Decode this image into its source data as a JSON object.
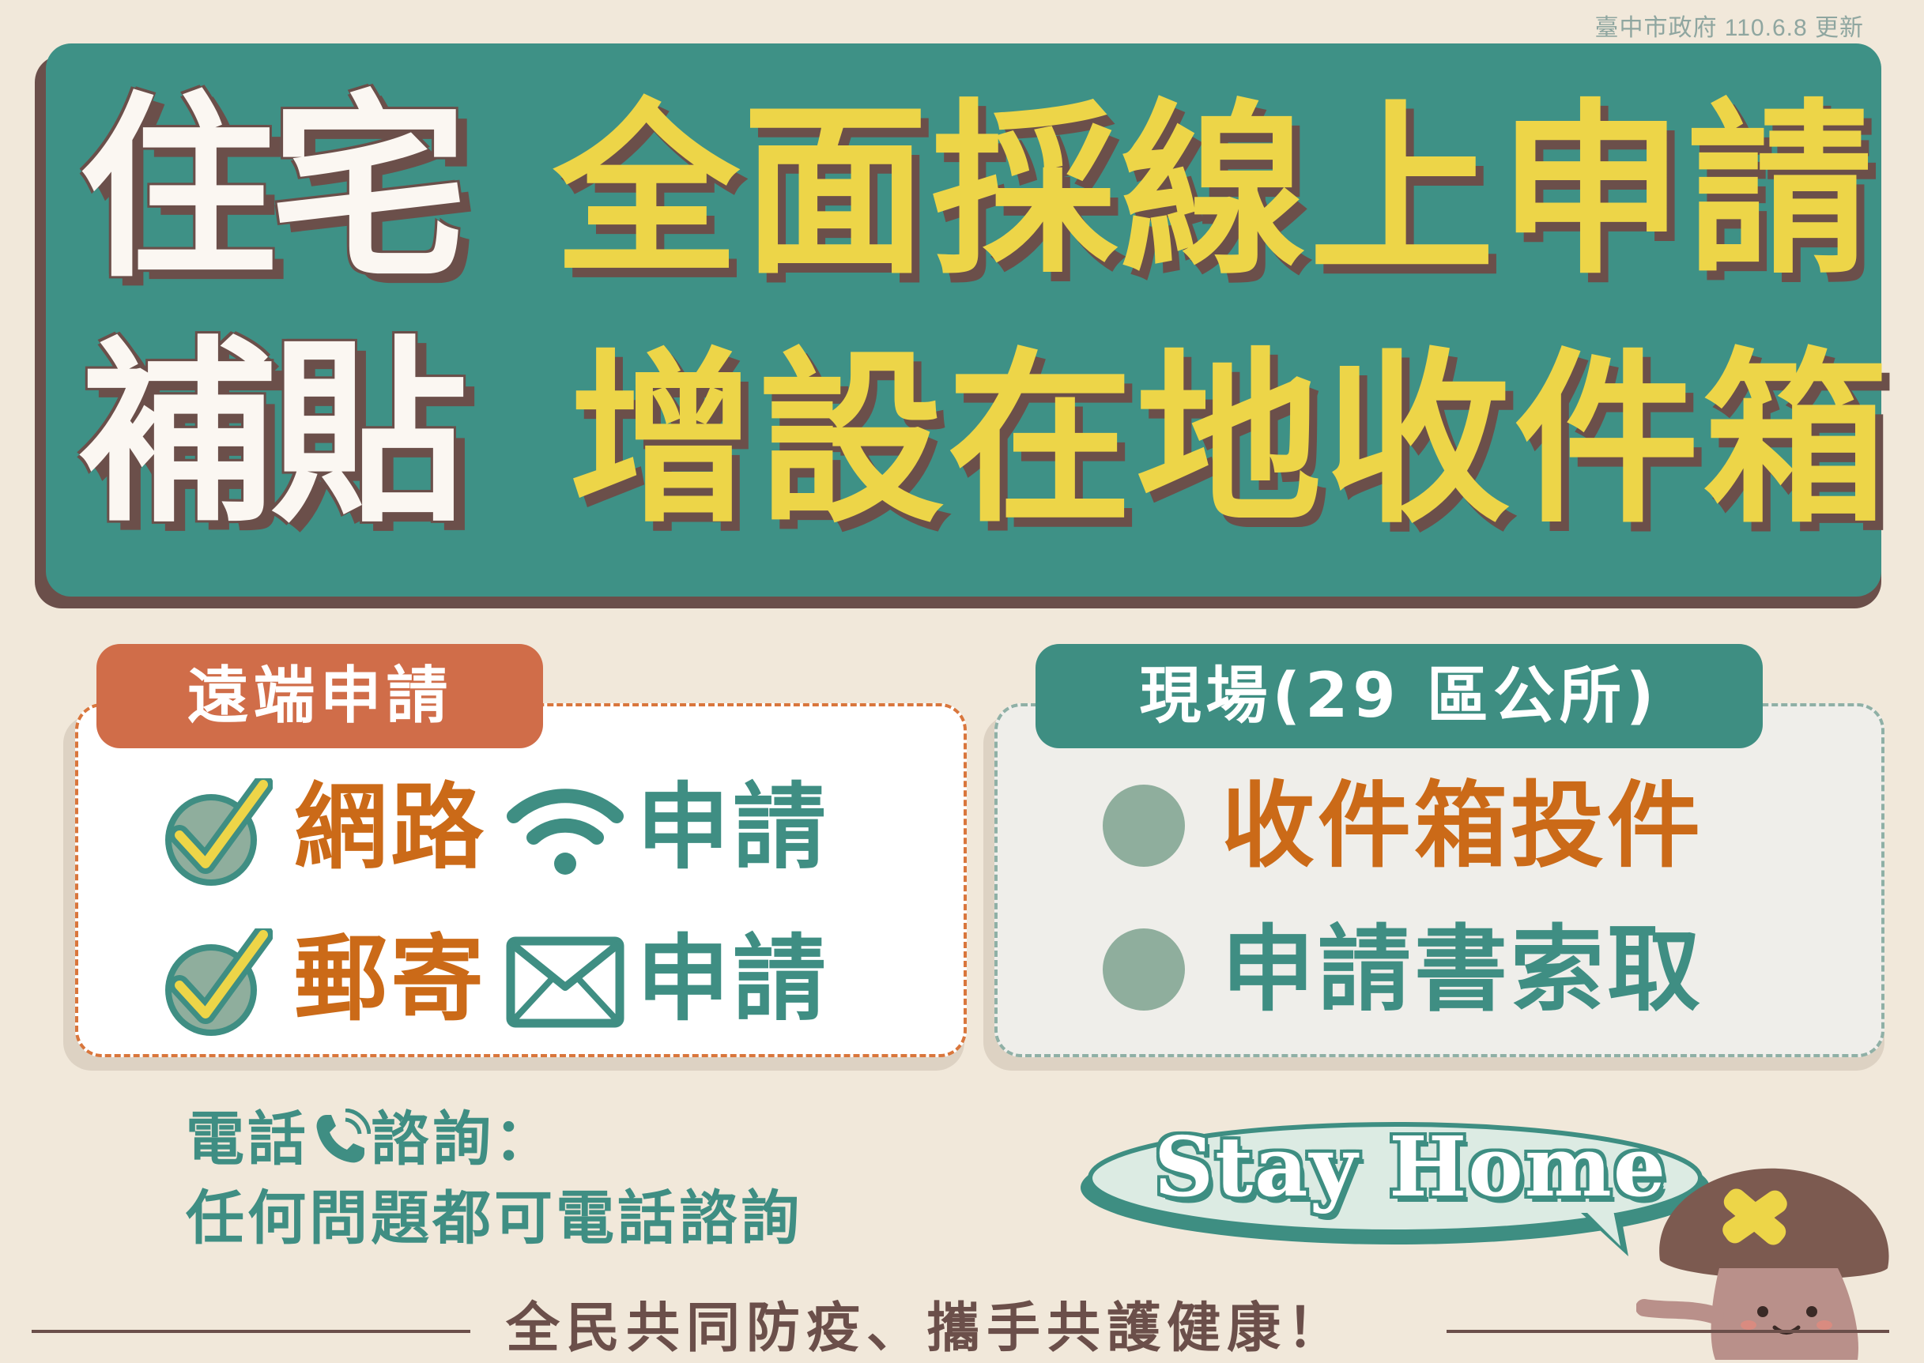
{
  "update_note": "臺中市政府 110.6.8 更新",
  "banner": {
    "left_line1": "住宅",
    "left_line2": "補貼",
    "right_line1": "全面採線上申請",
    "right_line2": "增設在地收件箱"
  },
  "remote": {
    "tag": "遠端申請",
    "items": [
      {
        "label": "網路",
        "action": "申請",
        "icon": "wifi-icon"
      },
      {
        "label": "郵寄",
        "action": "申請",
        "icon": "envelope-icon"
      }
    ]
  },
  "onsite": {
    "tag": "現場(29 區公所)",
    "items": [
      "收件箱投件",
      "申請書索取"
    ]
  },
  "consult": {
    "line1_a": "電話",
    "line1_b": "諮詢：",
    "line2": "任何問題都可電話諮詢"
  },
  "stay_home": "Stay Home",
  "slogan": "全民共同防疫、攜手共護健康！",
  "colors": {
    "background": "#f1e8da",
    "banner_teal": "#3e9186",
    "title_yellow": "#edd548",
    "shadow_brown": "#6b4f4a",
    "accent_orange": "#cb6a18",
    "tag_orange": "#d06d49",
    "tag_teal": "#3e8e82"
  }
}
